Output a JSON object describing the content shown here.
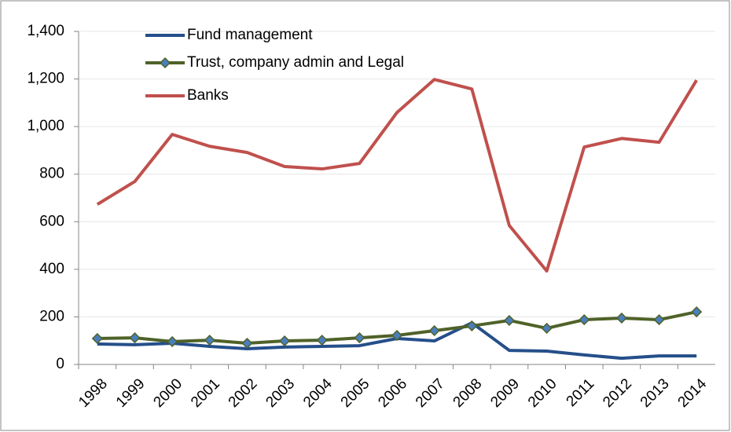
{
  "chart_data": {
    "type": "line",
    "categories": [
      "1998",
      "1999",
      "2000",
      "2001",
      "2002",
      "2003",
      "2004",
      "2005",
      "2006",
      "2007",
      "2008",
      "2009",
      "2010",
      "2011",
      "2012",
      "2013",
      "2014"
    ],
    "series": [
      {
        "name": "Fund management",
        "color": "#254f8a",
        "values": [
          86,
          83,
          89,
          76,
          66,
          73,
          76,
          79,
          109,
          99,
          175,
          59,
          56,
          40,
          26,
          36,
          36
        ]
      },
      {
        "name": "Trust, company admin and Legal",
        "color": "#4f6228",
        "marker": "diamond",
        "marker_color": "#4a7ebb",
        "values": [
          109,
          112,
          96,
          102,
          89,
          99,
          102,
          112,
          122,
          142,
          162,
          185,
          152,
          188,
          195,
          188,
          221
        ]
      },
      {
        "name": "Banks",
        "color": "#c0504d",
        "values": [
          673,
          769,
          967,
          917,
          891,
          832,
          822,
          845,
          1059,
          1198,
          1158,
          584,
          393,
          914,
          950,
          934,
          1195
        ]
      }
    ],
    "ylim": [
      0,
      1400
    ],
    "yticks": [
      0,
      200,
      400,
      600,
      800,
      {
        "value": 1000,
        "label": "1,000"
      },
      {
        "value": 1200,
        "label": "1,200"
      },
      {
        "value": 1400,
        "label": "1,400"
      }
    ],
    "grid": true,
    "legend": "top-left"
  }
}
